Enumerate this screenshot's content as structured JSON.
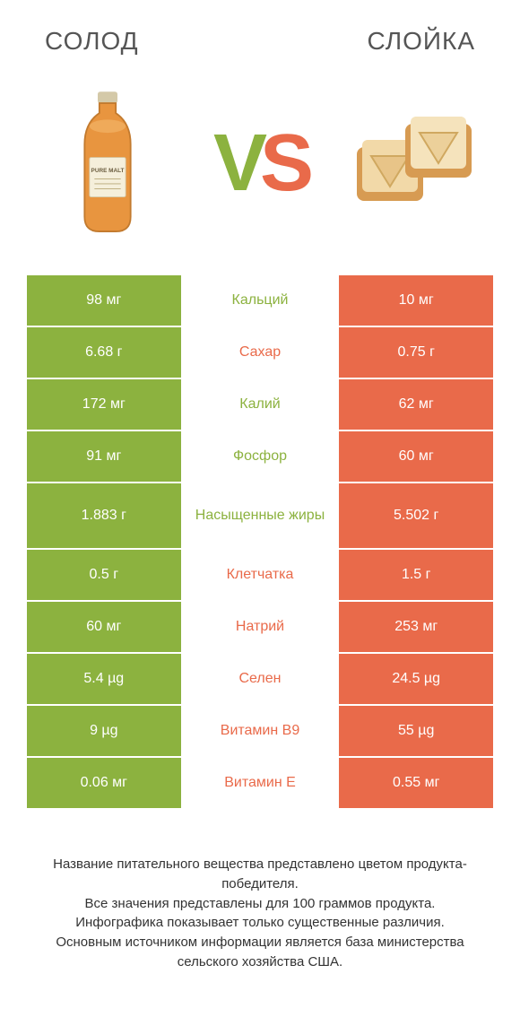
{
  "colors": {
    "green": "#8cb23f",
    "orange": "#e96a4a",
    "text": "#333333",
    "title": "#555555",
    "background": "#ffffff"
  },
  "typography": {
    "title_fontsize": 28,
    "vs_fontsize": 90,
    "cell_fontsize": 16,
    "footer_fontsize": 15
  },
  "header": {
    "left_title": "СОЛОД",
    "right_title": "СЛОЙКА",
    "vs_v": "V",
    "vs_s": "S",
    "left_image_label": "PURE MALT"
  },
  "table": {
    "rows": [
      {
        "left": "98 мг",
        "mid": "Кальций",
        "right": "10 мг",
        "winner": "left",
        "tall": false
      },
      {
        "left": "6.68 г",
        "mid": "Сахар",
        "right": "0.75 г",
        "winner": "right",
        "tall": false
      },
      {
        "left": "172 мг",
        "mid": "Калий",
        "right": "62 мг",
        "winner": "left",
        "tall": false
      },
      {
        "left": "91 мг",
        "mid": "Фосфор",
        "right": "60 мг",
        "winner": "left",
        "tall": false
      },
      {
        "left": "1.883 г",
        "mid": "Насыщенные жиры",
        "right": "5.502 г",
        "winner": "left",
        "tall": true
      },
      {
        "left": "0.5 г",
        "mid": "Клетчатка",
        "right": "1.5 г",
        "winner": "right",
        "tall": false
      },
      {
        "left": "60 мг",
        "mid": "Натрий",
        "right": "253 мг",
        "winner": "right",
        "tall": false
      },
      {
        "left": "5.4 µg",
        "mid": "Селен",
        "right": "24.5 µg",
        "winner": "right",
        "tall": false
      },
      {
        "left": "9 µg",
        "mid": "Витамин B9",
        "right": "55 µg",
        "winner": "right",
        "tall": false
      },
      {
        "left": "0.06 мг",
        "mid": "Витамин E",
        "right": "0.55 мг",
        "winner": "right",
        "tall": false
      }
    ]
  },
  "footer": {
    "line1": "Название питательного вещества представлено цветом продукта-победителя.",
    "line2": "Все значения представлены для 100 граммов продукта.",
    "line3": "Инфографика показывает только существенные различия.",
    "line4": "Основным источником информации является база министерства сельского хозяйства США."
  }
}
